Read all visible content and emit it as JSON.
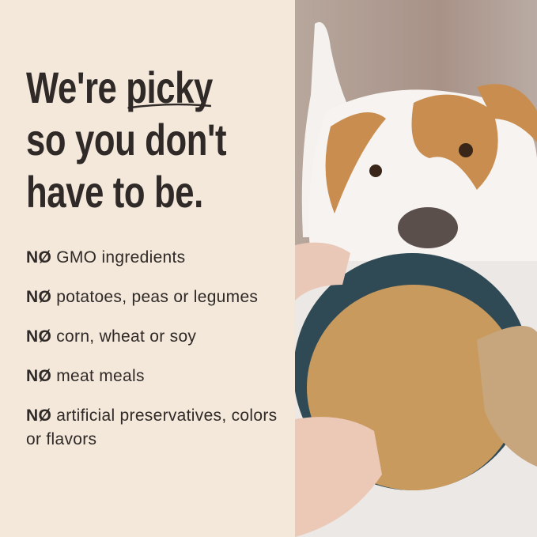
{
  "headline": {
    "line1_prefix": "We're ",
    "line1_emphasis": "picky",
    "line2": "so you don't",
    "line3": "have to be."
  },
  "list": [
    {
      "prefix": "NØ",
      "text": " GMO ingredients"
    },
    {
      "prefix": "NØ",
      "text": " potatoes, peas or legumes"
    },
    {
      "prefix": "NØ",
      "text": " corn, wheat or soy"
    },
    {
      "prefix": "NØ",
      "text": " meat meals"
    },
    {
      "prefix": "NØ",
      "text": " artificial preservatives, colors or flavors"
    }
  ],
  "colors": {
    "background": "#f3e8da",
    "text": "#2f2927"
  }
}
